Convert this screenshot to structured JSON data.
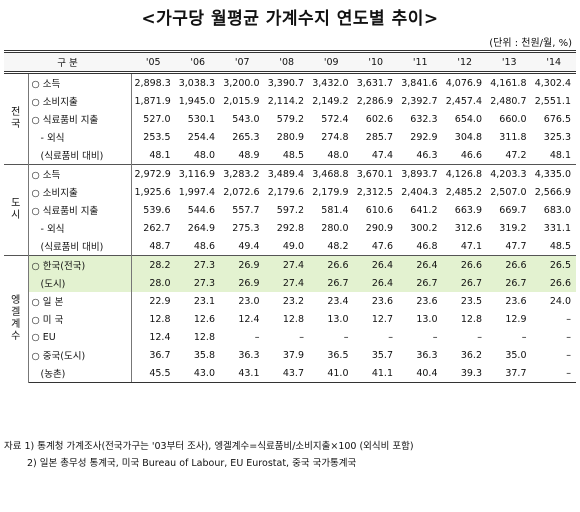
{
  "header": {
    "title": "<가구당 월평균 가계수지 연도별 추이>",
    "unit": "(단위 : 천원/월, %)"
  },
  "table": {
    "corner": "구 분",
    "columns": [
      "'05",
      "'06",
      "'07",
      "'08",
      "'09",
      "'10",
      "'11",
      "'12",
      "'13",
      "'14"
    ],
    "groups": [
      {
        "label": "전국",
        "rows": [
          {
            "label": "○ 소득",
            "values": [
              "2,898.3",
              "3,038.3",
              "3,200.0",
              "3,390.7",
              "3,432.0",
              "3,631.7",
              "3,841.6",
              "4,076.9",
              "4,161.8",
              "4,302.4"
            ]
          },
          {
            "label": "○ 소비지출",
            "values": [
              "1,871.9",
              "1,945.0",
              "2,015.9",
              "2,114.2",
              "2,149.2",
              "2,286.9",
              "2,392.7",
              "2,457.4",
              "2,480.7",
              "2,551.1"
            ]
          },
          {
            "label": "○ 식료품비 지출",
            "values": [
              "527.0",
              "530.1",
              "543.0",
              "579.2",
              "572.4",
              "602.6",
              "632.3",
              "654.0",
              "660.0",
              "676.5"
            ]
          },
          {
            "label": "- 외식",
            "values": [
              "253.5",
              "254.4",
              "265.3",
              "280.9",
              "274.8",
              "285.7",
              "292.9",
              "304.8",
              "311.8",
              "325.3"
            ]
          },
          {
            "label": "(식료품비 대비)",
            "values": [
              "48.1",
              "48.0",
              "48.9",
              "48.5",
              "48.0",
              "47.4",
              "46.3",
              "46.6",
              "47.2",
              "48.1"
            ]
          }
        ]
      },
      {
        "label": "도시",
        "rows": [
          {
            "label": "○ 소득",
            "values": [
              "2,972.9",
              "3,116.9",
              "3,283.2",
              "3,489.4",
              "3,468.8",
              "3,670.1",
              "3,893.7",
              "4,126.8",
              "4,203.3",
              "4,335.0"
            ]
          },
          {
            "label": "○ 소비지출",
            "values": [
              "1,925.6",
              "1,997.4",
              "2,072.6",
              "2,179.6",
              "2,179.9",
              "2,312.5",
              "2,404.3",
              "2,485.2",
              "2,507.0",
              "2,566.9"
            ]
          },
          {
            "label": "○ 식료품비 지출",
            "values": [
              "539.6",
              "544.6",
              "557.7",
              "597.2",
              "581.4",
              "610.6",
              "641.2",
              "663.9",
              "669.7",
              "683.0"
            ]
          },
          {
            "label": "- 외식",
            "values": [
              "262.7",
              "264.9",
              "275.3",
              "292.8",
              "280.0",
              "290.9",
              "300.2",
              "312.6",
              "319.2",
              "331.1"
            ]
          },
          {
            "label": "(식료품비 대비)",
            "values": [
              "48.7",
              "48.6",
              "49.4",
              "49.0",
              "48.2",
              "47.6",
              "46.8",
              "47.1",
              "47.7",
              "48.5"
            ]
          }
        ]
      },
      {
        "label": "엥겔계수",
        "rows": [
          {
            "label": "○ 한국(전국)",
            "values": [
              "28.2",
              "27.3",
              "26.9",
              "27.4",
              "26.6",
              "26.4",
              "26.4",
              "26.6",
              "26.6",
              "26.5"
            ]
          },
          {
            "label": "(도시)",
            "values": [
              "28.0",
              "27.3",
              "26.9",
              "27.4",
              "26.7",
              "26.4",
              "26.7",
              "26.7",
              "26.7",
              "26.6"
            ]
          },
          {
            "label": "○ 일 본",
            "values": [
              "22.9",
              "23.1",
              "23.0",
              "23.2",
              "23.4",
              "23.6",
              "23.6",
              "23.5",
              "23.6",
              "24.0"
            ]
          },
          {
            "label": "○ 미 국",
            "values": [
              "12.8",
              "12.6",
              "12.4",
              "12.8",
              "13.0",
              "12.7",
              "13.0",
              "12.8",
              "12.9",
              "–"
            ]
          },
          {
            "label": "○ EU",
            "values": [
              "12.4",
              "12.8",
              "–",
              "–",
              "–",
              "–",
              "–",
              "–",
              "–",
              "–"
            ]
          },
          {
            "label": "○ 중국(도시)",
            "values": [
              "36.7",
              "35.8",
              "36.3",
              "37.9",
              "36.5",
              "35.7",
              "36.3",
              "36.2",
              "35.0",
              "–"
            ]
          },
          {
            "label": "(농촌)",
            "values": [
              "45.5",
              "43.0",
              "43.1",
              "43.7",
              "41.0",
              "41.1",
              "40.4",
              "39.3",
              "37.7",
              "–"
            ]
          }
        ]
      }
    ]
  },
  "notes": [
    "자료 1) 통계청 가계조사(전국가구는 '03부터 조사), 엥겔계수=식료품비/소비지출×100 (외식비 포함)",
    "2) 일본 총무성 통계국, 미국 Bureau of Labour, EU Eurostat, 중국 국가통계국"
  ]
}
